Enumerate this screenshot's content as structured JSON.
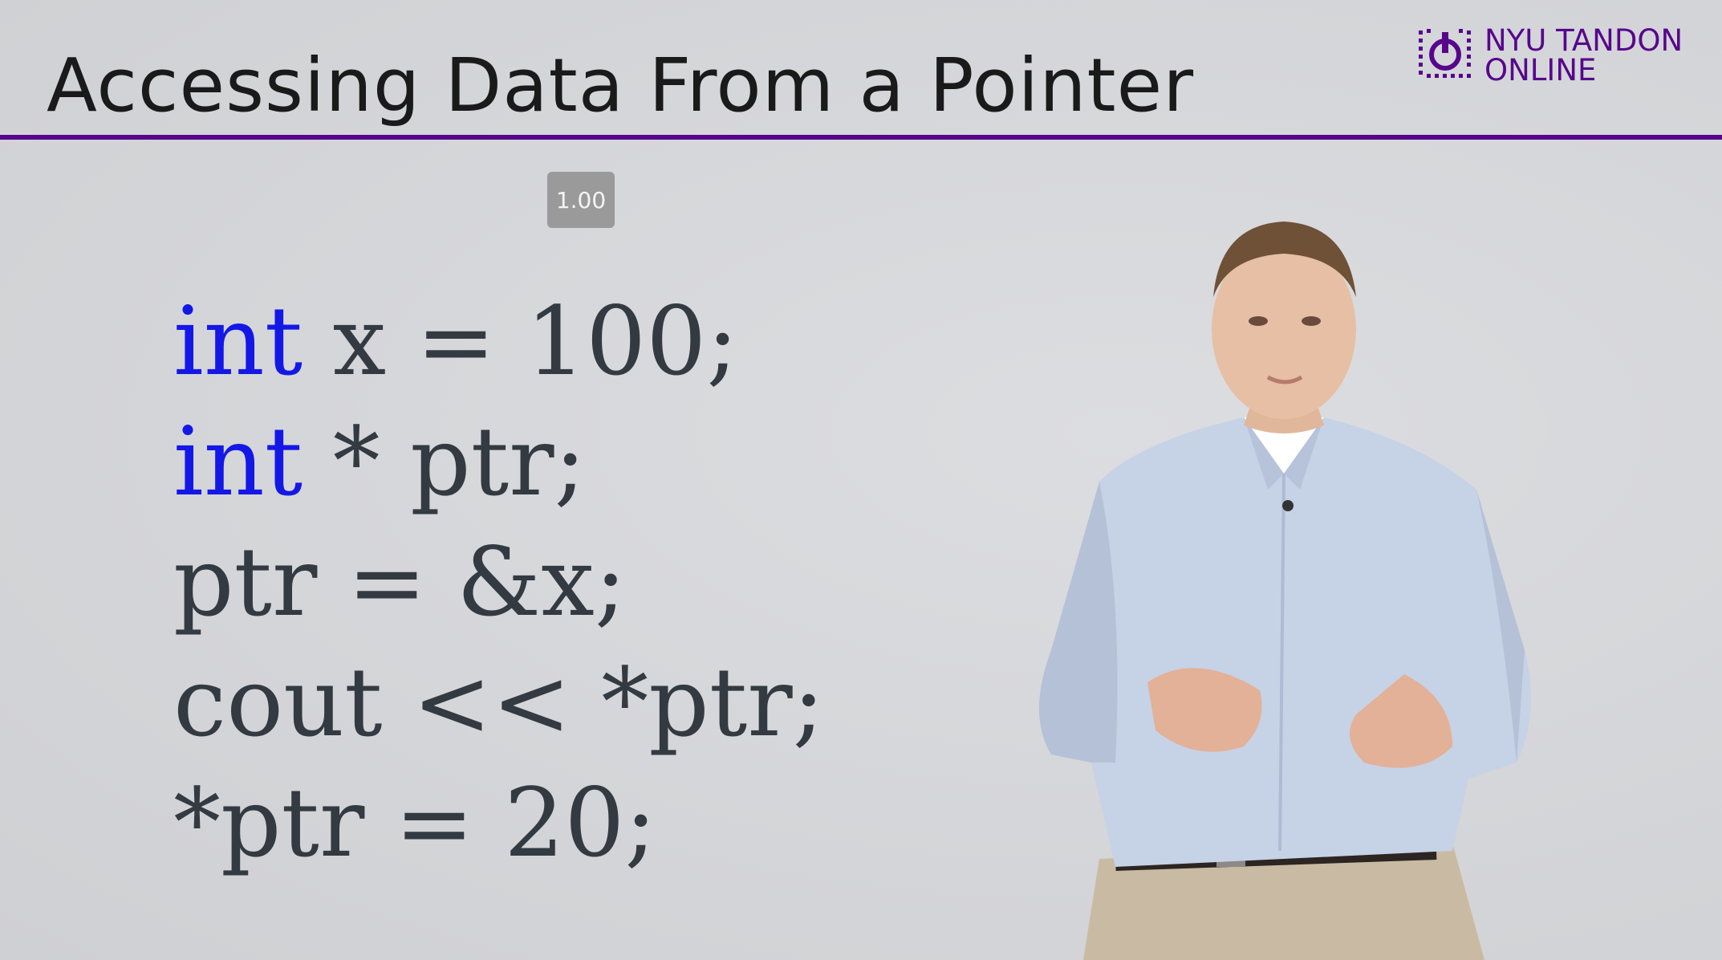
{
  "slide": {
    "title": "Accessing Data From a Pointer",
    "logo": {
      "line1": "NYU TANDON",
      "line2": "ONLINE",
      "brand_color": "#57068c"
    },
    "playback_rate": "1.00",
    "code_lines": [
      [
        {
          "text": "int",
          "kind": "keyword"
        },
        {
          "text": " x = 100;",
          "kind": "plain"
        }
      ],
      [
        {
          "text": "int",
          "kind": "keyword"
        },
        {
          "text": " * ptr;",
          "kind": "plain"
        }
      ],
      [
        {
          "text": "ptr = &x;",
          "kind": "plain"
        }
      ],
      [
        {
          "text": "cout << *ptr;",
          "kind": "plain"
        }
      ],
      [
        {
          "text": "*ptr = 20;",
          "kind": "plain"
        }
      ]
    ],
    "keyword_color": "#1418e6",
    "plain_color": "#333a42",
    "divider_color": "#57068c"
  }
}
